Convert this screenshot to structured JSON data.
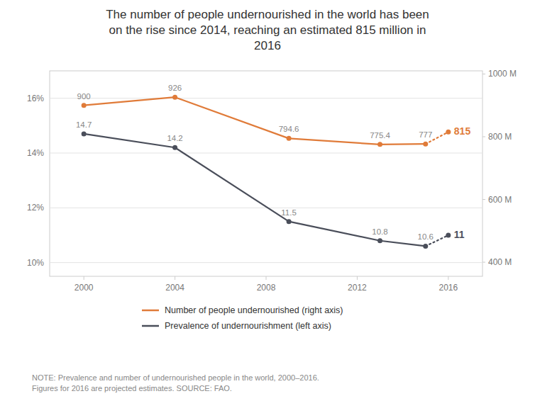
{
  "chart_data": {
    "type": "line",
    "title": "The number of people undernourished in the world has been\non the rise since 2014, reaching an estimated 815 million in\n2016",
    "x": [
      2000,
      2004,
      2009,
      2013,
      2015,
      2016
    ],
    "series": [
      {
        "name": "Number of people undernourished (right axis)",
        "color": "#e07b39",
        "axis": "y2",
        "values": [
          900,
          926,
          794.6,
          775.4,
          777,
          815
        ]
      },
      {
        "name": "Prevalence of undernourishment (left axis)",
        "color": "#4a4e5a",
        "values": [
          14.7,
          14.2,
          11.5,
          10.8,
          10.6,
          11.0
        ]
      }
    ],
    "xlim": [
      1998.5,
      2017.5
    ],
    "xticks": [
      2000,
      2004,
      2008,
      2012,
      2016
    ],
    "ylim": [
      9.5,
      17.0
    ],
    "yticks": [
      {
        "value": 10,
        "label": "10%"
      },
      {
        "value": 12,
        "label": "12%"
      },
      {
        "value": 14,
        "label": "14%"
      },
      {
        "value": 16,
        "label": "16%"
      }
    ],
    "y2lim": [
      355,
      1010
    ],
    "y2ticks": [
      {
        "value": 400,
        "label": "400 M"
      },
      {
        "value": 600,
        "label": "600 M"
      },
      {
        "value": 800,
        "label": "800 M"
      },
      {
        "value": 1000,
        "label": "1000 M"
      }
    ],
    "grid": true,
    "legend": "bottom",
    "data_labels": true,
    "marker": "circle",
    "annotations": [
      "NOTE: Prevalence and number of undernourished people in the world, 2000–2016.\nFigures for 2016 are projected estimates. SOURCE: FAO."
    ]
  }
}
